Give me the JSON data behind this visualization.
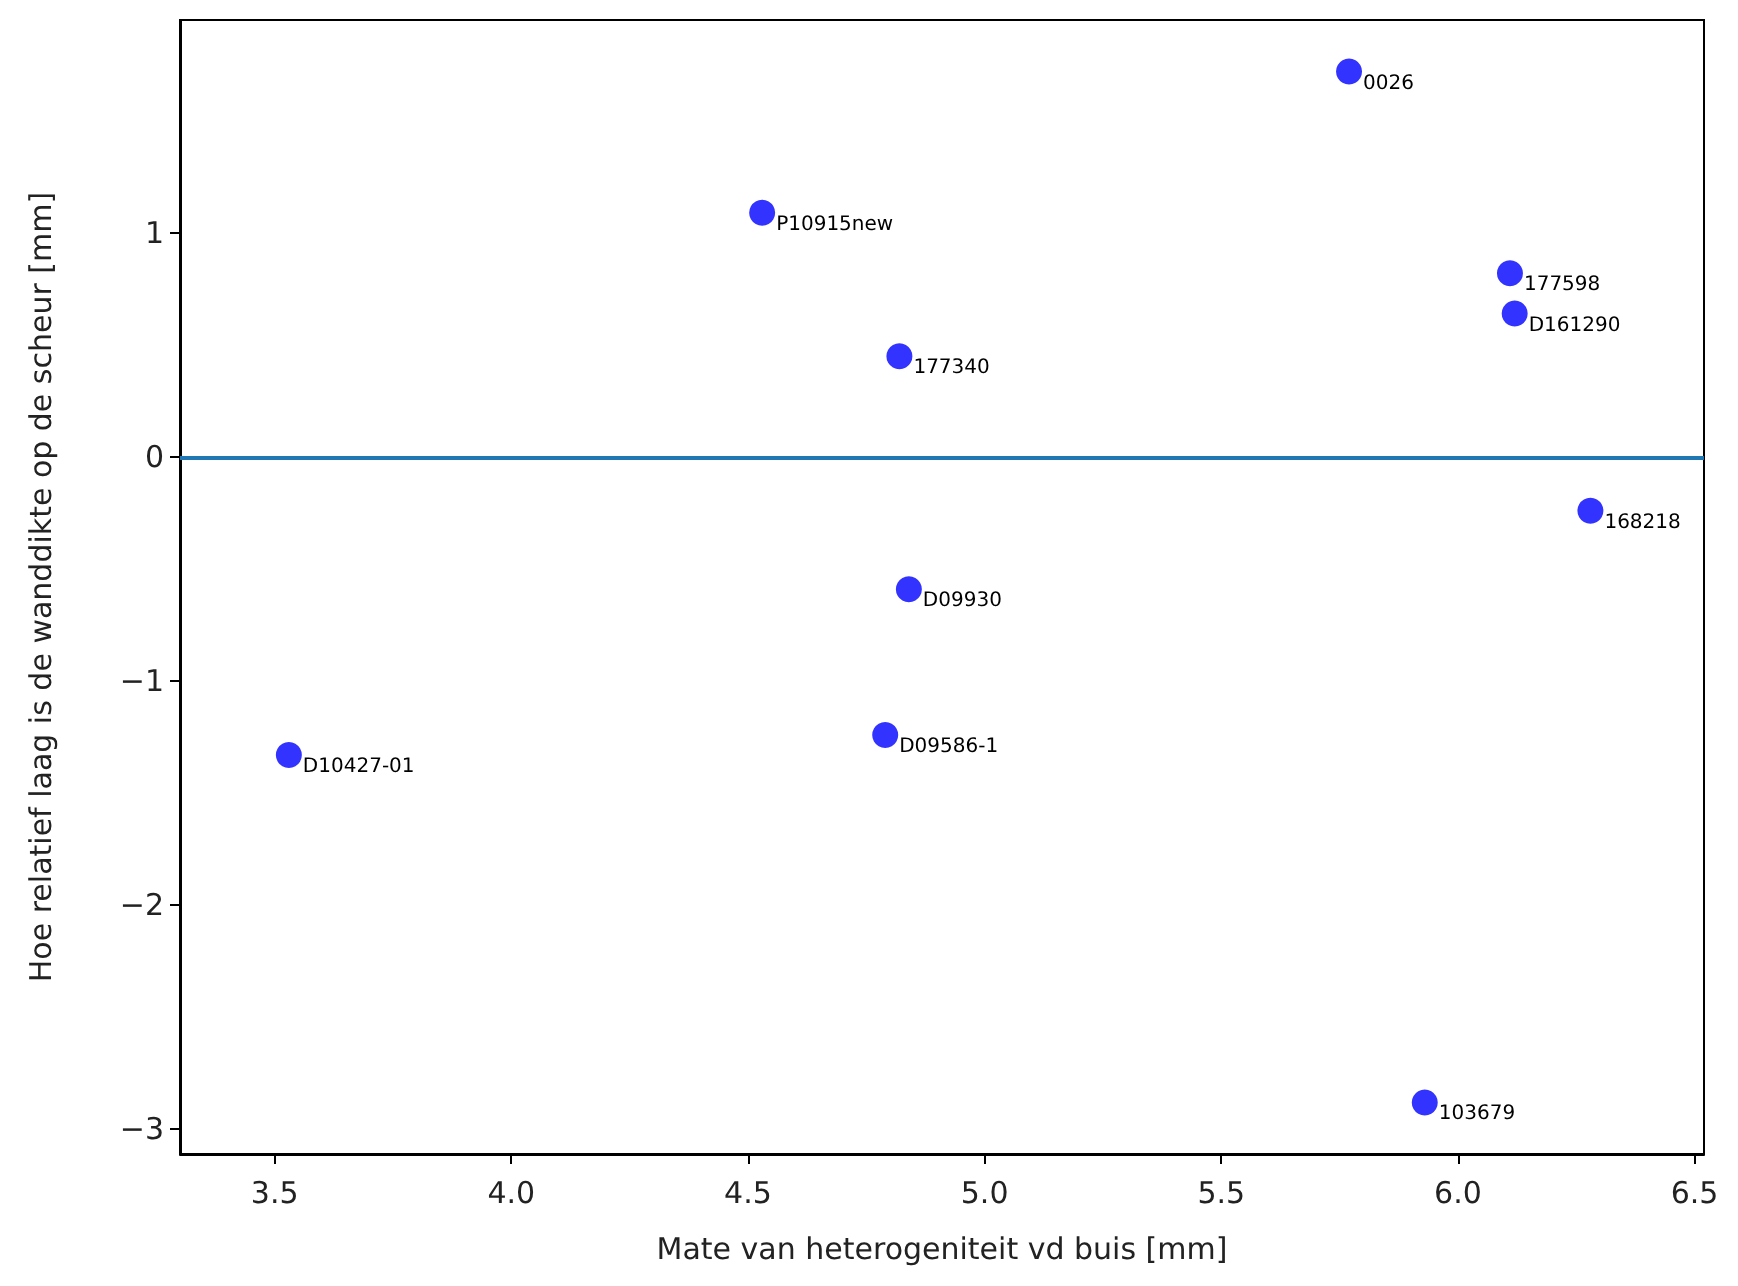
{
  "chart_data": {
    "type": "scatter",
    "xlabel": "Mate van heterogeniteit vd buis [mm]",
    "ylabel": "Hoe relatief laag is de wanddikte op de scheur [mm]",
    "x": [
      5.77,
      4.53,
      6.11,
      6.12,
      4.82,
      6.28,
      4.84,
      4.79,
      3.53,
      5.93
    ],
    "values": [
      1.72,
      1.09,
      0.82,
      0.64,
      0.45,
      -0.24,
      -0.59,
      -1.24,
      -1.33,
      -2.88
    ],
    "annotations": [
      {
        "text": "0026",
        "x": 5.77,
        "y": 1.72
      },
      {
        "text": "P10915new",
        "x": 4.53,
        "y": 1.09
      },
      {
        "text": "177598",
        "x": 6.11,
        "y": 0.82
      },
      {
        "text": "D161290",
        "x": 6.12,
        "y": 0.64
      },
      {
        "text": "177340",
        "x": 4.82,
        "y": 0.45
      },
      {
        "text": "168218",
        "x": 6.28,
        "y": -0.24
      },
      {
        "text": "D09930",
        "x": 4.84,
        "y": -0.59
      },
      {
        "text": "D09586-1",
        "x": 4.79,
        "y": -1.24
      },
      {
        "text": "D10427-01",
        "x": 3.53,
        "y": -1.33
      },
      {
        "text": "103679",
        "x": 5.93,
        "y": -2.88
      }
    ],
    "color": "#0000ff",
    "marker": "circle",
    "xlim": [
      3.3,
      6.52
    ],
    "xticks": [
      3.5,
      {
        "value": 4,
        "label": "4.0"
      },
      4.5,
      {
        "value": 5,
        "label": "5.0"
      },
      5.5,
      {
        "value": 6,
        "label": "6.0"
      },
      6.5
    ],
    "ylim": [
      -3.11,
      1.95
    ],
    "yticks": [
      -3,
      -2,
      -1,
      0,
      1
    ],
    "ref_lines": [
      {
        "axis": "y",
        "value": 0,
        "color": "#1f77b4"
      }
    ],
    "grid": false
  }
}
